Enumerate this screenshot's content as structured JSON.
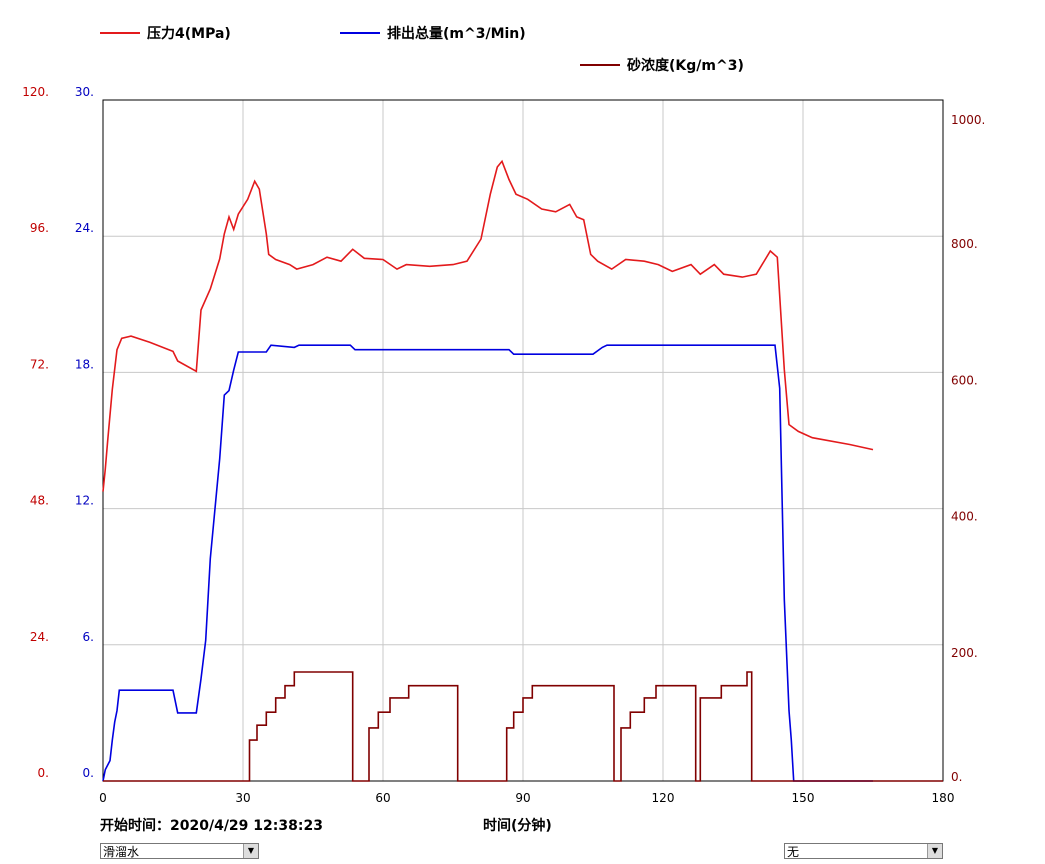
{
  "chart_data": {
    "type": "line",
    "xlabel": "时间(分钟)",
    "start_time": "开始时间：2020/4/29 12:38:23",
    "xlim": [
      0,
      180
    ],
    "xticks": [
      0,
      30,
      60,
      90,
      120,
      150,
      180
    ],
    "ylim": [
      0,
      120
    ],
    "yticks": [
      {
        "value": 0,
        "label": "0."
      },
      {
        "value": 24,
        "label": "24."
      },
      {
        "value": 48,
        "label": "48."
      },
      {
        "value": 72,
        "label": "72."
      },
      {
        "value": 96,
        "label": "96."
      },
      {
        "value": 120,
        "label": "120."
      }
    ],
    "y2lim": [
      0,
      30
    ],
    "y2ticks": [
      {
        "value": 0,
        "label": "0."
      },
      {
        "value": 6,
        "label": "6."
      },
      {
        "value": 12,
        "label": "12."
      },
      {
        "value": 18,
        "label": "18."
      },
      {
        "value": 24,
        "label": "24."
      },
      {
        "value": 30,
        "label": "30."
      }
    ],
    "y3lim": [
      0,
      1000
    ],
    "y3ticks": [
      {
        "value": 0,
        "label": "0."
      },
      {
        "value": 200,
        "label": "200."
      },
      {
        "value": 400,
        "label": "400."
      },
      {
        "value": 600,
        "label": "600."
      },
      {
        "value": 800,
        "label": "800."
      },
      {
        "value": 1000,
        "label": "1000."
      }
    ],
    "grid": true,
    "series": [
      {
        "name": "压力4(MPa)",
        "color": "#e31a1c",
        "axis": "y",
        "axis_color": "#c00000",
        "x": [
          0,
          0.5,
          1,
          2,
          3,
          4,
          6,
          10,
          15,
          16,
          20,
          21,
          23,
          25,
          26,
          27,
          28,
          29,
          31,
          32.5,
          33.5,
          35,
          35.5,
          37,
          40,
          41.5,
          45,
          48,
          51,
          53.5,
          56,
          60,
          63,
          65,
          70,
          75,
          78,
          81,
          83,
          84.5,
          85.5,
          87,
          88.5,
          91,
          94,
          97,
          100,
          101.5,
          103,
          104.5,
          106,
          109,
          112,
          116,
          119,
          122,
          126,
          128,
          131,
          133,
          137,
          140,
          143,
          144.5,
          146,
          147,
          149,
          152,
          160,
          165
        ],
        "values": [
          51,
          55,
          60,
          69,
          76,
          78,
          78.4,
          77.3,
          75.7,
          74,
          72.2,
          83,
          86.7,
          92,
          96.4,
          99.4,
          97.2,
          99.9,
          102.5,
          105.7,
          104.3,
          96.4,
          92.8,
          91.9,
          91,
          90.2,
          91,
          92.3,
          91.6,
          93.7,
          92.1,
          91.9,
          90.2,
          91,
          90.7,
          91,
          91.6,
          95.5,
          103.4,
          108.2,
          109.2,
          106,
          103.4,
          102.5,
          100.8,
          100.3,
          101.6,
          99.4,
          98.9,
          92.8,
          91.6,
          90.2,
          91.9,
          91.6,
          91,
          89.8,
          91,
          89.3,
          91,
          89.3,
          88.8,
          89.3,
          93.4,
          92.3,
          72.5,
          62.8,
          61.6,
          60.5,
          59.3,
          58.4
        ]
      },
      {
        "name": "排出总量(m^3/Min)",
        "color": "#0000e0",
        "axis": "y2",
        "axis_color": "#0000c0",
        "x": [
          0,
          0.5,
          1.5,
          2,
          2.5,
          3,
          3.5,
          15,
          16,
          20,
          21,
          22,
          23,
          24,
          25,
          26,
          27,
          28,
          29,
          35,
          36,
          41,
          42,
          53,
          54,
          87,
          88,
          105,
          107,
          108,
          144,
          145,
          146,
          147,
          147.5,
          148,
          165
        ],
        "values": [
          0,
          0.5,
          0.9,
          1.8,
          2.6,
          3.1,
          4,
          4,
          3,
          3,
          4.5,
          6.2,
          9.8,
          12,
          14.2,
          17,
          17.2,
          18.1,
          18.9,
          18.9,
          19.2,
          19.1,
          19.2,
          19.2,
          19,
          19,
          18.8,
          18.8,
          19.1,
          19.2,
          19.2,
          17.3,
          8,
          3.1,
          1.8,
          0,
          0
        ]
      },
      {
        "name": "砂浓度(Kg/m^3)",
        "color": "#800000",
        "axis": "y3",
        "axis_color": "#800000",
        "x": [
          0,
          31.4,
          31.4,
          33,
          33,
          35,
          35,
          37,
          37,
          39,
          39,
          41,
          41,
          53.5,
          53.5,
          57,
          57,
          59,
          59,
          61.5,
          61.5,
          65.5,
          65.5,
          76,
          76,
          86.5,
          86.5,
          88,
          88,
          90,
          90,
          92,
          92,
          109.5,
          109.5,
          111,
          111,
          113,
          113,
          116,
          116,
          118.5,
          118.5,
          127,
          127,
          128,
          128,
          132.5,
          132.5,
          138,
          138,
          139,
          139,
          180
        ],
        "values": [
          0,
          0,
          60,
          60,
          82,
          82,
          101,
          101,
          122,
          122,
          140,
          140,
          160,
          160,
          0,
          0,
          78,
          78,
          101,
          101,
          122,
          122,
          140,
          140,
          0,
          0,
          78,
          78,
          101,
          101,
          122,
          122,
          140,
          140,
          0,
          0,
          78,
          78,
          101,
          101,
          122,
          122,
          140,
          140,
          0,
          0,
          122,
          122,
          140,
          140,
          160,
          160,
          0,
          0
        ]
      }
    ]
  },
  "controls": {
    "fluid": "滑溜水",
    "proppant": "无"
  }
}
